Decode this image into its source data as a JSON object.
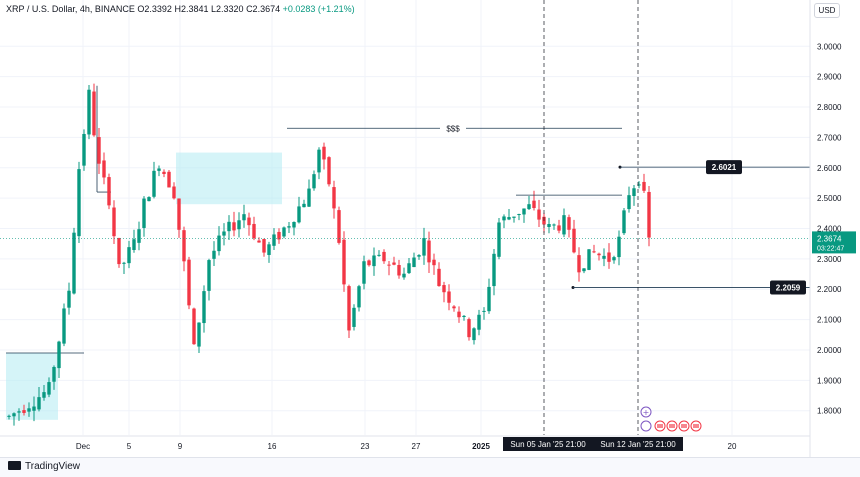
{
  "header": {
    "symbol": "XRP / U.S. Dollar, 4h, BINANCE",
    "open": "O2.3392",
    "high": "H2.3841",
    "low": "L2.3320",
    "close": "C2.3674",
    "change": "+0.0283 (+1.21%)"
  },
  "currency_button": "USD",
  "footer": {
    "brand": "TradingView"
  },
  "colors": {
    "up": "#089981",
    "down": "#f23645",
    "zone": "#b2ebf2",
    "line": "#1e3a52"
  },
  "chart_data": {
    "type": "candlestick",
    "ylim": [
      1.72,
      3.08
    ],
    "yticks": [
      "3.0000",
      "2.9000",
      "2.8000",
      "2.7000",
      "2.6000",
      "2.5000",
      "2.4000",
      "2.3000",
      "2.2000",
      "2.1000",
      "2.0000",
      "1.9000",
      "1.8000"
    ],
    "xticks": [
      "Dec",
      "5",
      "9",
      "16",
      "23",
      "27",
      "2025",
      "20"
    ],
    "current_price": {
      "value": 2.3674,
      "label": "2.3674",
      "countdown": "03:22:47"
    },
    "levels": [
      {
        "label": "$$$",
        "value": 2.73
      },
      {
        "label": "2.6021",
        "value": 2.6021
      },
      {
        "label": "2.2059",
        "value": 2.2059
      }
    ],
    "crosshair_labels": [
      "Sun 05 Jan '25   21:00",
      "Sun 12 Jan '25   21:00"
    ],
    "anchors": [
      {
        "t": 0,
        "p": 1.78
      },
      {
        "t": 8,
        "p": 1.87
      },
      {
        "t": 12,
        "p": 2.2
      },
      {
        "t": 14,
        "p": 2.6
      },
      {
        "t": 16,
        "p": 2.84
      },
      {
        "t": 18,
        "p": 2.6
      },
      {
        "t": 20,
        "p": 2.5
      },
      {
        "t": 22,
        "p": 2.26
      },
      {
        "t": 25,
        "p": 2.35
      },
      {
        "t": 27,
        "p": 2.48
      },
      {
        "t": 30,
        "p": 2.62
      },
      {
        "t": 33,
        "p": 2.52
      },
      {
        "t": 35,
        "p": 2.28
      },
      {
        "t": 37,
        "p": 2.0
      },
      {
        "t": 40,
        "p": 2.3
      },
      {
        "t": 43,
        "p": 2.38
      },
      {
        "t": 47,
        "p": 2.45
      },
      {
        "t": 51,
        "p": 2.32
      },
      {
        "t": 56,
        "p": 2.42
      },
      {
        "t": 60,
        "p": 2.52
      },
      {
        "t": 62,
        "p": 2.66
      },
      {
        "t": 64,
        "p": 2.55
      },
      {
        "t": 66,
        "p": 2.36
      },
      {
        "t": 68,
        "p": 2.06
      },
      {
        "t": 71,
        "p": 2.28
      },
      {
        "t": 75,
        "p": 2.3
      },
      {
        "t": 79,
        "p": 2.25
      },
      {
        "t": 83,
        "p": 2.36
      },
      {
        "t": 86,
        "p": 2.22
      },
      {
        "t": 89,
        "p": 2.15
      },
      {
        "t": 92,
        "p": 2.06
      },
      {
        "t": 95,
        "p": 2.12
      },
      {
        "t": 98,
        "p": 2.42
      },
      {
        "t": 101,
        "p": 2.45
      },
      {
        "t": 104,
        "p": 2.47
      },
      {
        "t": 108,
        "p": 2.4
      },
      {
        "t": 111,
        "p": 2.42
      },
      {
        "t": 114,
        "p": 2.28
      },
      {
        "t": 117,
        "p": 2.32
      },
      {
        "t": 120,
        "p": 2.3
      },
      {
        "t": 122,
        "p": 2.36
      },
      {
        "t": 124,
        "p": 2.52
      },
      {
        "t": 126,
        "p": 2.57
      },
      {
        "t": 127,
        "p": 2.5
      },
      {
        "t": 128,
        "p": 2.36
      }
    ]
  }
}
